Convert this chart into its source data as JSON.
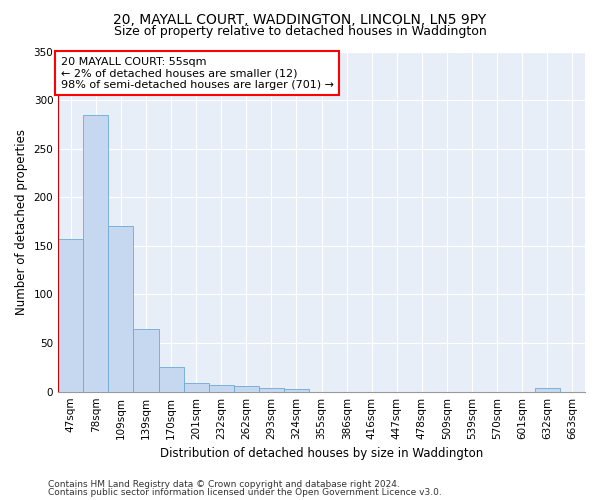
{
  "title_line1": "20, MAYALL COURT, WADDINGTON, LINCOLN, LN5 9PY",
  "title_line2": "Size of property relative to detached houses in Waddington",
  "xlabel": "Distribution of detached houses by size in Waddington",
  "ylabel": "Number of detached properties",
  "categories": [
    "47sqm",
    "78sqm",
    "109sqm",
    "139sqm",
    "170sqm",
    "201sqm",
    "232sqm",
    "262sqm",
    "293sqm",
    "324sqm",
    "355sqm",
    "386sqm",
    "416sqm",
    "447sqm",
    "478sqm",
    "509sqm",
    "539sqm",
    "570sqm",
    "601sqm",
    "632sqm",
    "663sqm"
  ],
  "values": [
    157,
    285,
    170,
    65,
    25,
    9,
    7,
    6,
    4,
    3,
    0,
    0,
    0,
    0,
    0,
    0,
    0,
    0,
    0,
    4,
    0
  ],
  "bar_color": "#c5d8f0",
  "bar_edge_color": "#6aaad4",
  "highlight_color": "#cc0000",
  "annotation_text": "20 MAYALL COURT: 55sqm\n← 2% of detached houses are smaller (12)\n98% of semi-detached houses are larger (701) →",
  "ylim": [
    0,
    350
  ],
  "yticks": [
    0,
    50,
    100,
    150,
    200,
    250,
    300,
    350
  ],
  "bg_color": "#e8eef8",
  "grid_color": "#ffffff",
  "footer_line1": "Contains HM Land Registry data © Crown copyright and database right 2024.",
  "footer_line2": "Contains public sector information licensed under the Open Government Licence v3.0.",
  "title_fontsize": 10,
  "subtitle_fontsize": 9,
  "axis_label_fontsize": 8.5,
  "tick_fontsize": 7.5,
  "annotation_fontsize": 8,
  "footer_fontsize": 6.5
}
